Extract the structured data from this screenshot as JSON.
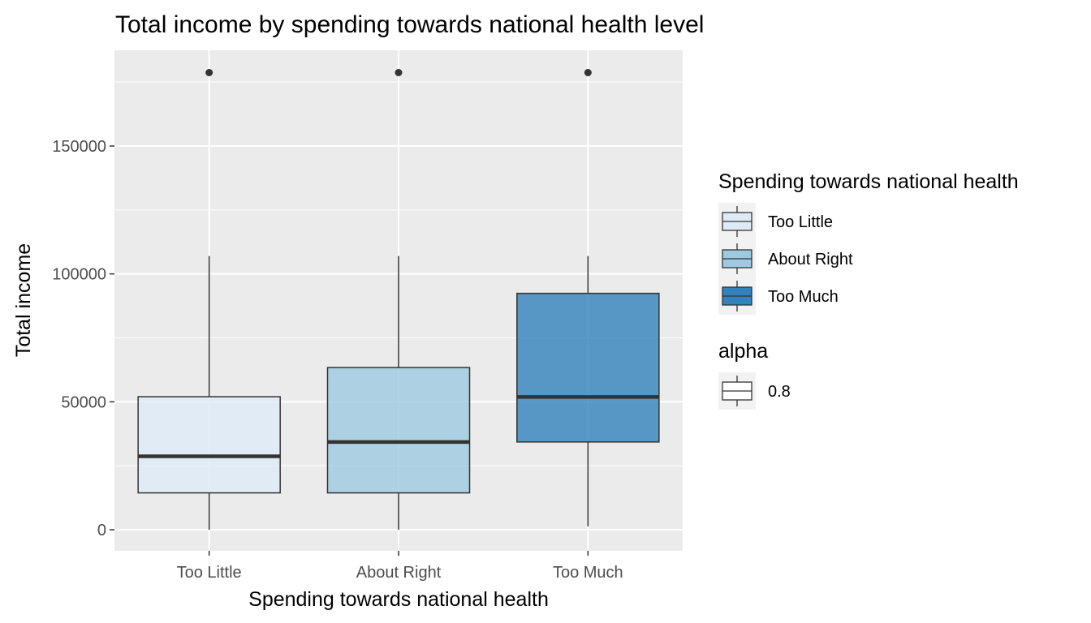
{
  "chart_data": {
    "type": "box",
    "title": "Total income by spending towards national health level",
    "xlabel": "Spending towards national health",
    "ylabel": "Total income",
    "categories": [
      "Too Little",
      "About Right",
      "Too Much"
    ],
    "ylim": [
      -8000,
      188000
    ],
    "yticks": [
      0,
      50000,
      100000,
      150000
    ],
    "yticks_labels": [
      "0",
      "50000",
      "100000",
      "150000"
    ],
    "grid": true,
    "boxes": [
      {
        "category": "Too Little",
        "whisker_low": 0,
        "q1": 14400,
        "median": 28700,
        "q3": 52000,
        "whisker_high": 107000,
        "outliers": [
          178700
        ]
      },
      {
        "category": "About Right",
        "whisker_low": 0,
        "q1": 14400,
        "median": 34300,
        "q3": 63400,
        "whisker_high": 107000,
        "outliers": [
          178700
        ]
      },
      {
        "category": "Too Much",
        "whisker_low": 1300,
        "q1": 34300,
        "median": 51900,
        "q3": 92400,
        "whisker_high": 107000,
        "outliers": [
          178700
        ]
      }
    ],
    "fill_colors": [
      "#DEEBF7",
      "#9ECAE1",
      "#3182BD"
    ],
    "fill_alpha": 0.8,
    "legend_position": "right",
    "legend": [
      {
        "title": "Spending towards national health",
        "entries": [
          {
            "label": "Too Little",
            "color": "#DEEBF7"
          },
          {
            "label": "About Right",
            "color": "#9ECAE1"
          },
          {
            "label": "Too Much",
            "color": "#3182BD"
          }
        ]
      },
      {
        "title": "alpha",
        "entries": [
          {
            "label": "0.8",
            "color": "#FFFFFF"
          }
        ]
      }
    ]
  }
}
